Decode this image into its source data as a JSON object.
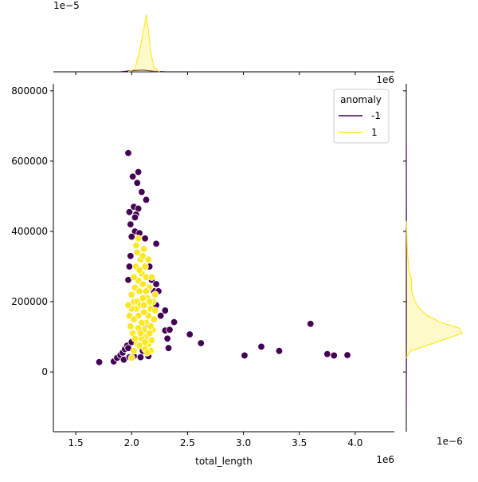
{
  "chart_data": {
    "type": "scatter",
    "xlabel": "total_length",
    "ylabel": "",
    "x_offset_label": "1e6",
    "y_offset_label": "1e6",
    "top_density_offset_label": "1e−5",
    "right_density_offset_label": "1e−6",
    "xlim": [
      1.3,
      4.35
    ],
    "ylim": [
      -170000,
      820000
    ],
    "x_ticks": [
      1.5,
      2.0,
      2.5,
      3.0,
      3.5,
      4.0
    ],
    "x_tick_labels": [
      "1.5",
      "2.0",
      "2.5",
      "3.0",
      "3.5",
      "4.0"
    ],
    "y_ticks": [
      0,
      200000,
      400000,
      600000,
      800000
    ],
    "y_tick_labels": [
      "0",
      "200000",
      "400000",
      "600000",
      "800000"
    ],
    "grid": false,
    "legend": {
      "title": "anomaly",
      "placement": "top-right",
      "entries": [
        {
          "label": "-1",
          "color": "#440154"
        },
        {
          "label": "1",
          "color": "#fde725"
        }
      ]
    },
    "series": [
      {
        "name": "-1",
        "color": "#440154",
        "points": [
          [
            1.71,
            28000
          ],
          [
            1.84,
            30000
          ],
          [
            1.87,
            40000
          ],
          [
            1.9,
            48000
          ],
          [
            1.92,
            55000
          ],
          [
            1.94,
            65000
          ],
          [
            1.96,
            75000
          ],
          [
            1.97,
            68000
          ],
          [
            1.93,
            35000
          ],
          [
            1.98,
            42000
          ],
          [
            2.0,
            85000
          ],
          [
            2.02,
            45000
          ],
          [
            1.97,
            623000
          ],
          [
            2.01,
            556000
          ],
          [
            2.05,
            538000
          ],
          [
            2.06,
            569000
          ],
          [
            2.09,
            512000
          ],
          [
            2.02,
            470000
          ],
          [
            2.06,
            465000
          ],
          [
            2.04,
            448000
          ],
          [
            1.98,
            455000
          ],
          [
            2.13,
            490000
          ],
          [
            2.03,
            440000
          ],
          [
            1.99,
            420000
          ],
          [
            2.03,
            400000
          ],
          [
            2.07,
            395000
          ],
          [
            2.12,
            380000
          ],
          [
            2.0,
            385000
          ],
          [
            1.99,
            330000
          ],
          [
            2.16,
            300000
          ],
          [
            2.22,
            365000
          ],
          [
            1.98,
            300000
          ],
          [
            1.97,
            262000
          ],
          [
            2.18,
            262000
          ],
          [
            2.22,
            250000
          ],
          [
            2.2,
            230000
          ],
          [
            2.24,
            230000
          ],
          [
            2.22,
            190000
          ],
          [
            2.3,
            175000
          ],
          [
            2.26,
            160000
          ],
          [
            2.3,
            118000
          ],
          [
            2.34,
            120000
          ],
          [
            2.38,
            142000
          ],
          [
            2.32,
            95000
          ],
          [
            2.33,
            68000
          ],
          [
            2.52,
            107000
          ],
          [
            2.62,
            82000
          ],
          [
            3.01,
            47000
          ],
          [
            3.16,
            72000
          ],
          [
            3.32,
            60000
          ],
          [
            3.6,
            137000
          ],
          [
            3.75,
            51000
          ],
          [
            3.81,
            47000
          ],
          [
            3.93,
            48000
          ],
          [
            2.15,
            45000
          ],
          [
            2.1,
            60000
          ],
          [
            2.08,
            42000
          ],
          [
            2.12,
            135000
          ]
        ]
      },
      {
        "name": "1",
        "color": "#fde725",
        "points": [
          [
            2.0,
            40000
          ],
          [
            2.02,
            60000
          ],
          [
            2.05,
            80000
          ],
          [
            2.08,
            100000
          ],
          [
            2.1,
            120000
          ],
          [
            2.13,
            140000
          ],
          [
            2.15,
            160000
          ],
          [
            2.17,
            180000
          ],
          [
            2.19,
            200000
          ],
          [
            2.21,
            220000
          ],
          [
            2.0,
            220000
          ],
          [
            2.02,
            200000
          ],
          [
            2.04,
            180000
          ],
          [
            2.06,
            160000
          ],
          [
            2.09,
            140000
          ],
          [
            2.11,
            120000
          ],
          [
            2.13,
            100000
          ],
          [
            2.15,
            80000
          ],
          [
            2.17,
            60000
          ],
          [
            2.19,
            120000
          ],
          [
            1.98,
            160000
          ],
          [
            1.99,
            130000
          ],
          [
            2.01,
            110000
          ],
          [
            2.03,
            95000
          ],
          [
            2.07,
            75000
          ],
          [
            2.12,
            65000
          ],
          [
            2.16,
            110000
          ],
          [
            2.2,
            150000
          ],
          [
            2.03,
            240000
          ],
          [
            2.06,
            260000
          ],
          [
            2.09,
            280000
          ],
          [
            2.12,
            300000
          ],
          [
            2.15,
            320000
          ],
          [
            2.05,
            340000
          ],
          [
            2.08,
            320000
          ],
          [
            2.11,
            350000
          ],
          [
            2.04,
            300000
          ],
          [
            2.07,
            230000
          ],
          [
            2.1,
            250000
          ],
          [
            2.13,
            270000
          ],
          [
            2.16,
            240000
          ],
          [
            2.18,
            270000
          ],
          [
            2.05,
            200000
          ],
          [
            2.08,
            190000
          ],
          [
            2.11,
            170000
          ],
          [
            2.14,
            210000
          ],
          [
            2.17,
            130000
          ],
          [
            2.0,
            180000
          ],
          [
            1.97,
            190000
          ],
          [
            2.02,
            150000
          ],
          [
            2.06,
            125000
          ],
          [
            2.09,
            95000
          ],
          [
            2.12,
            85000
          ],
          [
            2.14,
            55000
          ],
          [
            2.18,
            90000
          ],
          [
            2.21,
            175000
          ],
          [
            2.1,
            210000
          ],
          [
            2.13,
            230000
          ],
          [
            2.07,
            290000
          ],
          [
            2.1,
            330000
          ],
          [
            2.06,
            380000
          ],
          [
            2.04,
            360000
          ],
          [
            2.16,
            200000
          ],
          [
            2.02,
            270000
          ],
          [
            2.11,
            190000
          ],
          [
            2.08,
            110000
          ]
        ]
      }
    ],
    "top_density_curves": [
      {
        "name": "-1",
        "color": "#440154",
        "x": [
          1.9,
          2.0,
          2.1,
          2.2,
          2.3
        ],
        "density": [
          0.0,
          0.02,
          0.03,
          0.01,
          0.0
        ]
      },
      {
        "name": "1",
        "color": "#fde725",
        "x": [
          1.97,
          2.03,
          2.08,
          2.11,
          2.13,
          2.15,
          2.17,
          2.2,
          2.25
        ],
        "density": [
          0.0,
          0.05,
          0.45,
          0.75,
          0.99,
          0.72,
          0.35,
          0.08,
          0.0
        ]
      }
    ],
    "right_density_curves": [
      {
        "name": "-1",
        "color": "#440154",
        "y": [
          -100000,
          0,
          100000,
          200000,
          300000,
          400000,
          500000,
          650000
        ],
        "density": [
          0.0,
          0.01,
          0.03,
          0.03,
          0.02,
          0.015,
          0.005,
          0.0
        ]
      },
      {
        "name": "1",
        "color": "#fde725",
        "y": [
          40000,
          60000,
          90000,
          110000,
          125000,
          140000,
          160000,
          180000,
          200000,
          230000,
          260000,
          290000,
          320000,
          360000,
          400000,
          430000
        ],
        "density": [
          0.0,
          0.5,
          4.0,
          6.3,
          6.0,
          4.0,
          2.4,
          1.5,
          1.0,
          0.6,
          0.6,
          0.3,
          0.2,
          0.1,
          0.05,
          0.0
        ]
      }
    ]
  }
}
